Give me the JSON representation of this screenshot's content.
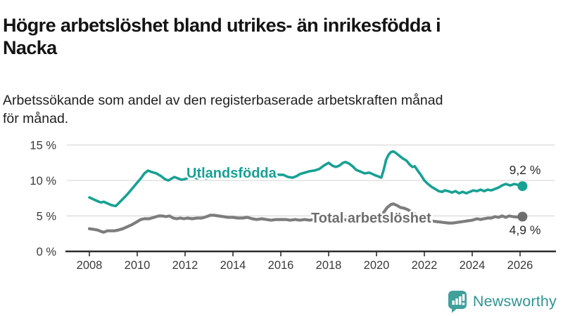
{
  "header": {
    "title": "Högre arbetslöshet bland utrikes- än inrikesfödda i\nNacka",
    "subtitle": "Arbetssökande som andel av den registerbaserade arbetskraften månad\nför månad."
  },
  "footer": {
    "brand": "Newsworthy",
    "logo_icon": "bar-chart-speech-bubble-icon"
  },
  "colors": {
    "teal": "#17a193",
    "gray": "#7d7d7d",
    "gray_label": "#6e6e6e",
    "axis": "#2d2d2d",
    "grid": "#d9d9d9",
    "tick_text": "#3a3a3a",
    "value_text": "#2b2b2b",
    "logo_icon_fill": "#40a09a",
    "logo_text": "#2e9692"
  },
  "chart_data": {
    "type": "line",
    "title": "Högre arbetslöshet bland utrikes- än inrikesfödda i Nacka",
    "subtitle": "Arbetssökande som andel av den registerbaserade arbetskraften månad för månad.",
    "unit": "%",
    "grid": true,
    "legend_position": "inline-on-lines",
    "x_axis": {
      "ticks": [
        "2008",
        "2010",
        "2012",
        "2014",
        "2016",
        "2018",
        "2020",
        "2022",
        "2024",
        "2026"
      ],
      "range_years": [
        2008,
        2026.2
      ]
    },
    "y_axis": {
      "ylim": [
        0,
        15.5
      ],
      "grid_values": [
        5,
        10,
        15
      ],
      "ticks": [
        {
          "v": 0,
          "label": "0 %"
        },
        {
          "v": 5,
          "label": "5 %"
        },
        {
          "v": 10,
          "label": "10 %"
        },
        {
          "v": 15,
          "label": "15 %"
        }
      ]
    },
    "series": [
      {
        "id": "utlandsfodda",
        "name": "Utlandsfödda",
        "color": "#17a193",
        "end_label": "9,2 %",
        "end_value": 9.2,
        "points": [
          [
            2008.0,
            7.6
          ],
          [
            2008.2,
            7.3
          ],
          [
            2008.4,
            7.0
          ],
          [
            2008.5,
            6.9
          ],
          [
            2008.6,
            7.0
          ],
          [
            2008.8,
            6.7
          ],
          [
            2008.95,
            6.5
          ],
          [
            2009.1,
            6.4
          ],
          [
            2009.2,
            6.7
          ],
          [
            2009.4,
            7.4
          ],
          [
            2009.6,
            8.1
          ],
          [
            2009.8,
            8.9
          ],
          [
            2010.0,
            9.7
          ],
          [
            2010.15,
            10.3
          ],
          [
            2010.3,
            11.0
          ],
          [
            2010.45,
            11.4
          ],
          [
            2010.6,
            11.2
          ],
          [
            2010.8,
            11.0
          ],
          [
            2011.0,
            10.6
          ],
          [
            2011.15,
            10.2
          ],
          [
            2011.3,
            10.0
          ],
          [
            2011.45,
            10.3
          ],
          [
            2011.55,
            10.5
          ],
          [
            2011.7,
            10.3
          ],
          [
            2011.85,
            10.1
          ],
          [
            2012.0,
            10.2
          ],
          [
            2012.15,
            10.4
          ],
          [
            2012.3,
            10.5
          ],
          [
            2012.5,
            10.3
          ],
          [
            2012.7,
            10.4
          ],
          [
            2012.9,
            10.3
          ],
          [
            2013.1,
            10.4
          ],
          [
            2013.3,
            10.5
          ],
          [
            2013.5,
            10.4
          ],
          [
            2013.7,
            10.5
          ],
          [
            2013.9,
            10.4
          ],
          [
            2014.1,
            10.5
          ],
          [
            2014.3,
            10.6
          ],
          [
            2014.5,
            10.5
          ],
          [
            2014.7,
            10.6
          ],
          [
            2014.9,
            10.7
          ],
          [
            2015.1,
            10.6
          ],
          [
            2015.3,
            10.7
          ],
          [
            2015.5,
            10.8
          ],
          [
            2015.7,
            10.7
          ],
          [
            2015.9,
            10.8
          ],
          [
            2016.1,
            10.8
          ],
          [
            2016.3,
            10.5
          ],
          [
            2016.5,
            10.4
          ],
          [
            2016.65,
            10.6
          ],
          [
            2016.8,
            10.9
          ],
          [
            2017.0,
            11.1
          ],
          [
            2017.2,
            11.3
          ],
          [
            2017.4,
            11.4
          ],
          [
            2017.6,
            11.6
          ],
          [
            2017.8,
            12.1
          ],
          [
            2018.0,
            12.5
          ],
          [
            2018.15,
            12.1
          ],
          [
            2018.3,
            11.9
          ],
          [
            2018.45,
            12.1
          ],
          [
            2018.6,
            12.5
          ],
          [
            2018.7,
            12.6
          ],
          [
            2018.85,
            12.4
          ],
          [
            2019.0,
            12.0
          ],
          [
            2019.15,
            11.5
          ],
          [
            2019.3,
            11.3
          ],
          [
            2019.5,
            11.0
          ],
          [
            2019.7,
            11.1
          ],
          [
            2019.9,
            10.8
          ],
          [
            2020.05,
            10.6
          ],
          [
            2020.2,
            10.4
          ],
          [
            2020.3,
            11.5
          ],
          [
            2020.4,
            12.9
          ],
          [
            2020.5,
            13.6
          ],
          [
            2020.6,
            14.0
          ],
          [
            2020.7,
            14.1
          ],
          [
            2020.8,
            13.9
          ],
          [
            2020.95,
            13.5
          ],
          [
            2021.1,
            13.1
          ],
          [
            2021.25,
            12.8
          ],
          [
            2021.4,
            12.2
          ],
          [
            2021.5,
            11.9
          ],
          [
            2021.6,
            12.0
          ],
          [
            2021.7,
            11.5
          ],
          [
            2021.85,
            10.8
          ],
          [
            2022.0,
            10.0
          ],
          [
            2022.15,
            9.5
          ],
          [
            2022.3,
            9.1
          ],
          [
            2022.45,
            8.8
          ],
          [
            2022.6,
            8.5
          ],
          [
            2022.75,
            8.4
          ],
          [
            2022.85,
            8.6
          ],
          [
            2023.0,
            8.5
          ],
          [
            2023.15,
            8.3
          ],
          [
            2023.3,
            8.5
          ],
          [
            2023.45,
            8.2
          ],
          [
            2023.6,
            8.4
          ],
          [
            2023.75,
            8.2
          ],
          [
            2023.9,
            8.4
          ],
          [
            2024.05,
            8.6
          ],
          [
            2024.2,
            8.5
          ],
          [
            2024.35,
            8.7
          ],
          [
            2024.5,
            8.5
          ],
          [
            2024.65,
            8.7
          ],
          [
            2024.8,
            8.6
          ],
          [
            2024.95,
            8.8
          ],
          [
            2025.1,
            9.0
          ],
          [
            2025.25,
            9.3
          ],
          [
            2025.4,
            9.5
          ],
          [
            2025.5,
            9.4
          ],
          [
            2025.6,
            9.3
          ],
          [
            2025.75,
            9.5
          ],
          [
            2025.9,
            9.4
          ],
          [
            2026.0,
            9.25
          ],
          [
            2026.1,
            9.2
          ]
        ]
      },
      {
        "id": "total",
        "name": "Total arbetslöshet",
        "color": "#7d7d7d",
        "end_label": "4,9 %",
        "end_value": 4.9,
        "points": [
          [
            2008.0,
            3.2
          ],
          [
            2008.2,
            3.1
          ],
          [
            2008.35,
            3.0
          ],
          [
            2008.5,
            2.8
          ],
          [
            2008.6,
            2.7
          ],
          [
            2008.75,
            2.9
          ],
          [
            2008.9,
            2.9
          ],
          [
            2009.05,
            2.9
          ],
          [
            2009.2,
            3.0
          ],
          [
            2009.4,
            3.2
          ],
          [
            2009.6,
            3.5
          ],
          [
            2009.8,
            3.8
          ],
          [
            2010.0,
            4.2
          ],
          [
            2010.15,
            4.5
          ],
          [
            2010.3,
            4.6
          ],
          [
            2010.5,
            4.6
          ],
          [
            2010.7,
            4.8
          ],
          [
            2010.9,
            5.0
          ],
          [
            2011.05,
            5.0
          ],
          [
            2011.2,
            4.9
          ],
          [
            2011.35,
            5.0
          ],
          [
            2011.5,
            4.7
          ],
          [
            2011.65,
            4.6
          ],
          [
            2011.8,
            4.7
          ],
          [
            2011.95,
            4.6
          ],
          [
            2012.1,
            4.7
          ],
          [
            2012.3,
            4.6
          ],
          [
            2012.5,
            4.7
          ],
          [
            2012.7,
            4.7
          ],
          [
            2012.9,
            4.9
          ],
          [
            2013.05,
            5.1
          ],
          [
            2013.2,
            5.1
          ],
          [
            2013.4,
            5.0
          ],
          [
            2013.6,
            4.9
          ],
          [
            2013.8,
            4.8
          ],
          [
            2014.0,
            4.8
          ],
          [
            2014.2,
            4.7
          ],
          [
            2014.4,
            4.7
          ],
          [
            2014.6,
            4.8
          ],
          [
            2014.8,
            4.6
          ],
          [
            2015.0,
            4.5
          ],
          [
            2015.2,
            4.6
          ],
          [
            2015.4,
            4.5
          ],
          [
            2015.6,
            4.4
          ],
          [
            2015.8,
            4.5
          ],
          [
            2016.0,
            4.5
          ],
          [
            2016.2,
            4.5
          ],
          [
            2016.4,
            4.4
          ],
          [
            2016.6,
            4.5
          ],
          [
            2016.8,
            4.4
          ],
          [
            2017.0,
            4.5
          ],
          [
            2017.2,
            4.4
          ],
          [
            2017.4,
            4.5
          ],
          [
            2017.6,
            4.4
          ],
          [
            2017.8,
            4.5
          ],
          [
            2018.0,
            4.5
          ],
          [
            2018.2,
            4.4
          ],
          [
            2018.4,
            4.5
          ],
          [
            2018.6,
            4.5
          ],
          [
            2018.8,
            4.4
          ],
          [
            2019.0,
            4.4
          ],
          [
            2019.2,
            4.5
          ],
          [
            2019.4,
            4.4
          ],
          [
            2019.6,
            4.5
          ],
          [
            2019.8,
            4.5
          ],
          [
            2020.0,
            4.6
          ],
          [
            2020.15,
            4.8
          ],
          [
            2020.3,
            5.5
          ],
          [
            2020.45,
            6.2
          ],
          [
            2020.6,
            6.6
          ],
          [
            2020.7,
            6.7
          ],
          [
            2020.85,
            6.5
          ],
          [
            2021.0,
            6.2
          ],
          [
            2021.15,
            6.1
          ],
          [
            2021.3,
            5.9
          ],
          [
            2021.45,
            5.6
          ],
          [
            2021.6,
            5.3
          ],
          [
            2021.75,
            5.0
          ],
          [
            2021.9,
            4.7
          ],
          [
            2022.05,
            4.5
          ],
          [
            2022.25,
            4.3
          ],
          [
            2022.5,
            4.2
          ],
          [
            2022.75,
            4.1
          ],
          [
            2023.0,
            4.0
          ],
          [
            2023.2,
            4.0
          ],
          [
            2023.4,
            4.1
          ],
          [
            2023.6,
            4.2
          ],
          [
            2023.8,
            4.3
          ],
          [
            2024.0,
            4.4
          ],
          [
            2024.2,
            4.6
          ],
          [
            2024.35,
            4.5
          ],
          [
            2024.5,
            4.6
          ],
          [
            2024.65,
            4.7
          ],
          [
            2024.8,
            4.7
          ],
          [
            2024.95,
            4.9
          ],
          [
            2025.1,
            4.8
          ],
          [
            2025.25,
            5.0
          ],
          [
            2025.4,
            4.8
          ],
          [
            2025.55,
            5.0
          ],
          [
            2025.7,
            4.9
          ],
          [
            2025.85,
            4.85
          ],
          [
            2026.0,
            4.9
          ],
          [
            2026.1,
            4.9
          ]
        ]
      }
    ]
  }
}
